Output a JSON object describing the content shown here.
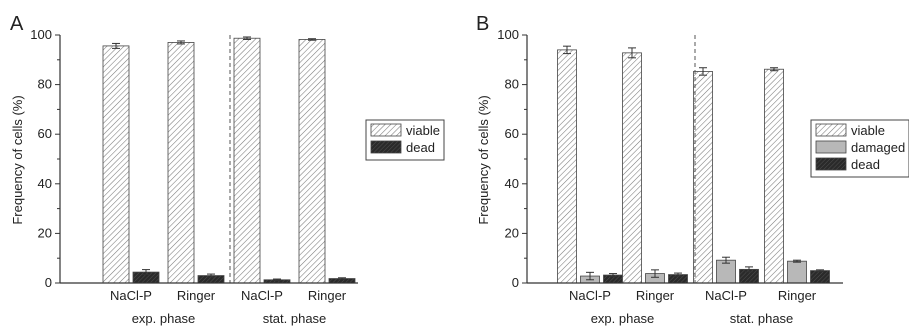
{
  "chart_data": [
    {
      "type": "bar",
      "panel_label": "A",
      "ylabel": "Frequency of cells (%)",
      "ylim": [
        0,
        100
      ],
      "yticks": [
        "0",
        "20",
        "40",
        "60",
        "80",
        "100"
      ],
      "categories": [
        "NaCl-P",
        "Ringer",
        "NaCl-P",
        "Ringer"
      ],
      "groups": [
        "exp. phase",
        "stat. phase"
      ],
      "series": [
        {
          "name": "viable",
          "values": [
            95.6,
            97.0,
            98.7,
            98.2
          ],
          "errors": [
            1.0,
            0.6,
            0.5,
            0.3
          ]
        },
        {
          "name": "dead",
          "values": [
            4.4,
            3.0,
            1.3,
            1.8
          ],
          "errors": [
            1.0,
            0.6,
            0.3,
            0.3
          ]
        }
      ],
      "legend_position": "right"
    },
    {
      "type": "bar",
      "panel_label": "B",
      "ylabel": "Frequency of cells (%)",
      "ylim": [
        0,
        100
      ],
      "yticks": [
        "0",
        "20",
        "40",
        "60",
        "80",
        "100"
      ],
      "categories": [
        "NaCl-P",
        "Ringer",
        "NaCl-P",
        "Ringer"
      ],
      "groups": [
        "exp. phase",
        "stat. phase"
      ],
      "series": [
        {
          "name": "viable",
          "values": [
            94.0,
            92.8,
            85.3,
            86.2
          ],
          "errors": [
            1.5,
            2.0,
            1.5,
            0.6
          ]
        },
        {
          "name": "damaged",
          "values": [
            2.8,
            3.8,
            9.2,
            8.8
          ],
          "errors": [
            1.5,
            1.5,
            1.2,
            0.4
          ]
        },
        {
          "name": "dead",
          "values": [
            3.2,
            3.4,
            5.5,
            5.0
          ],
          "errors": [
            0.6,
            0.6,
            1.0,
            0.3
          ]
        }
      ],
      "legend_position": "right"
    }
  ],
  "colors": {
    "viable": "#ffffff",
    "viable_hatch": "#7a7a7a",
    "damaged": "#b8b8b8",
    "dead": "#2a2a2a",
    "axis": "#333333"
  }
}
